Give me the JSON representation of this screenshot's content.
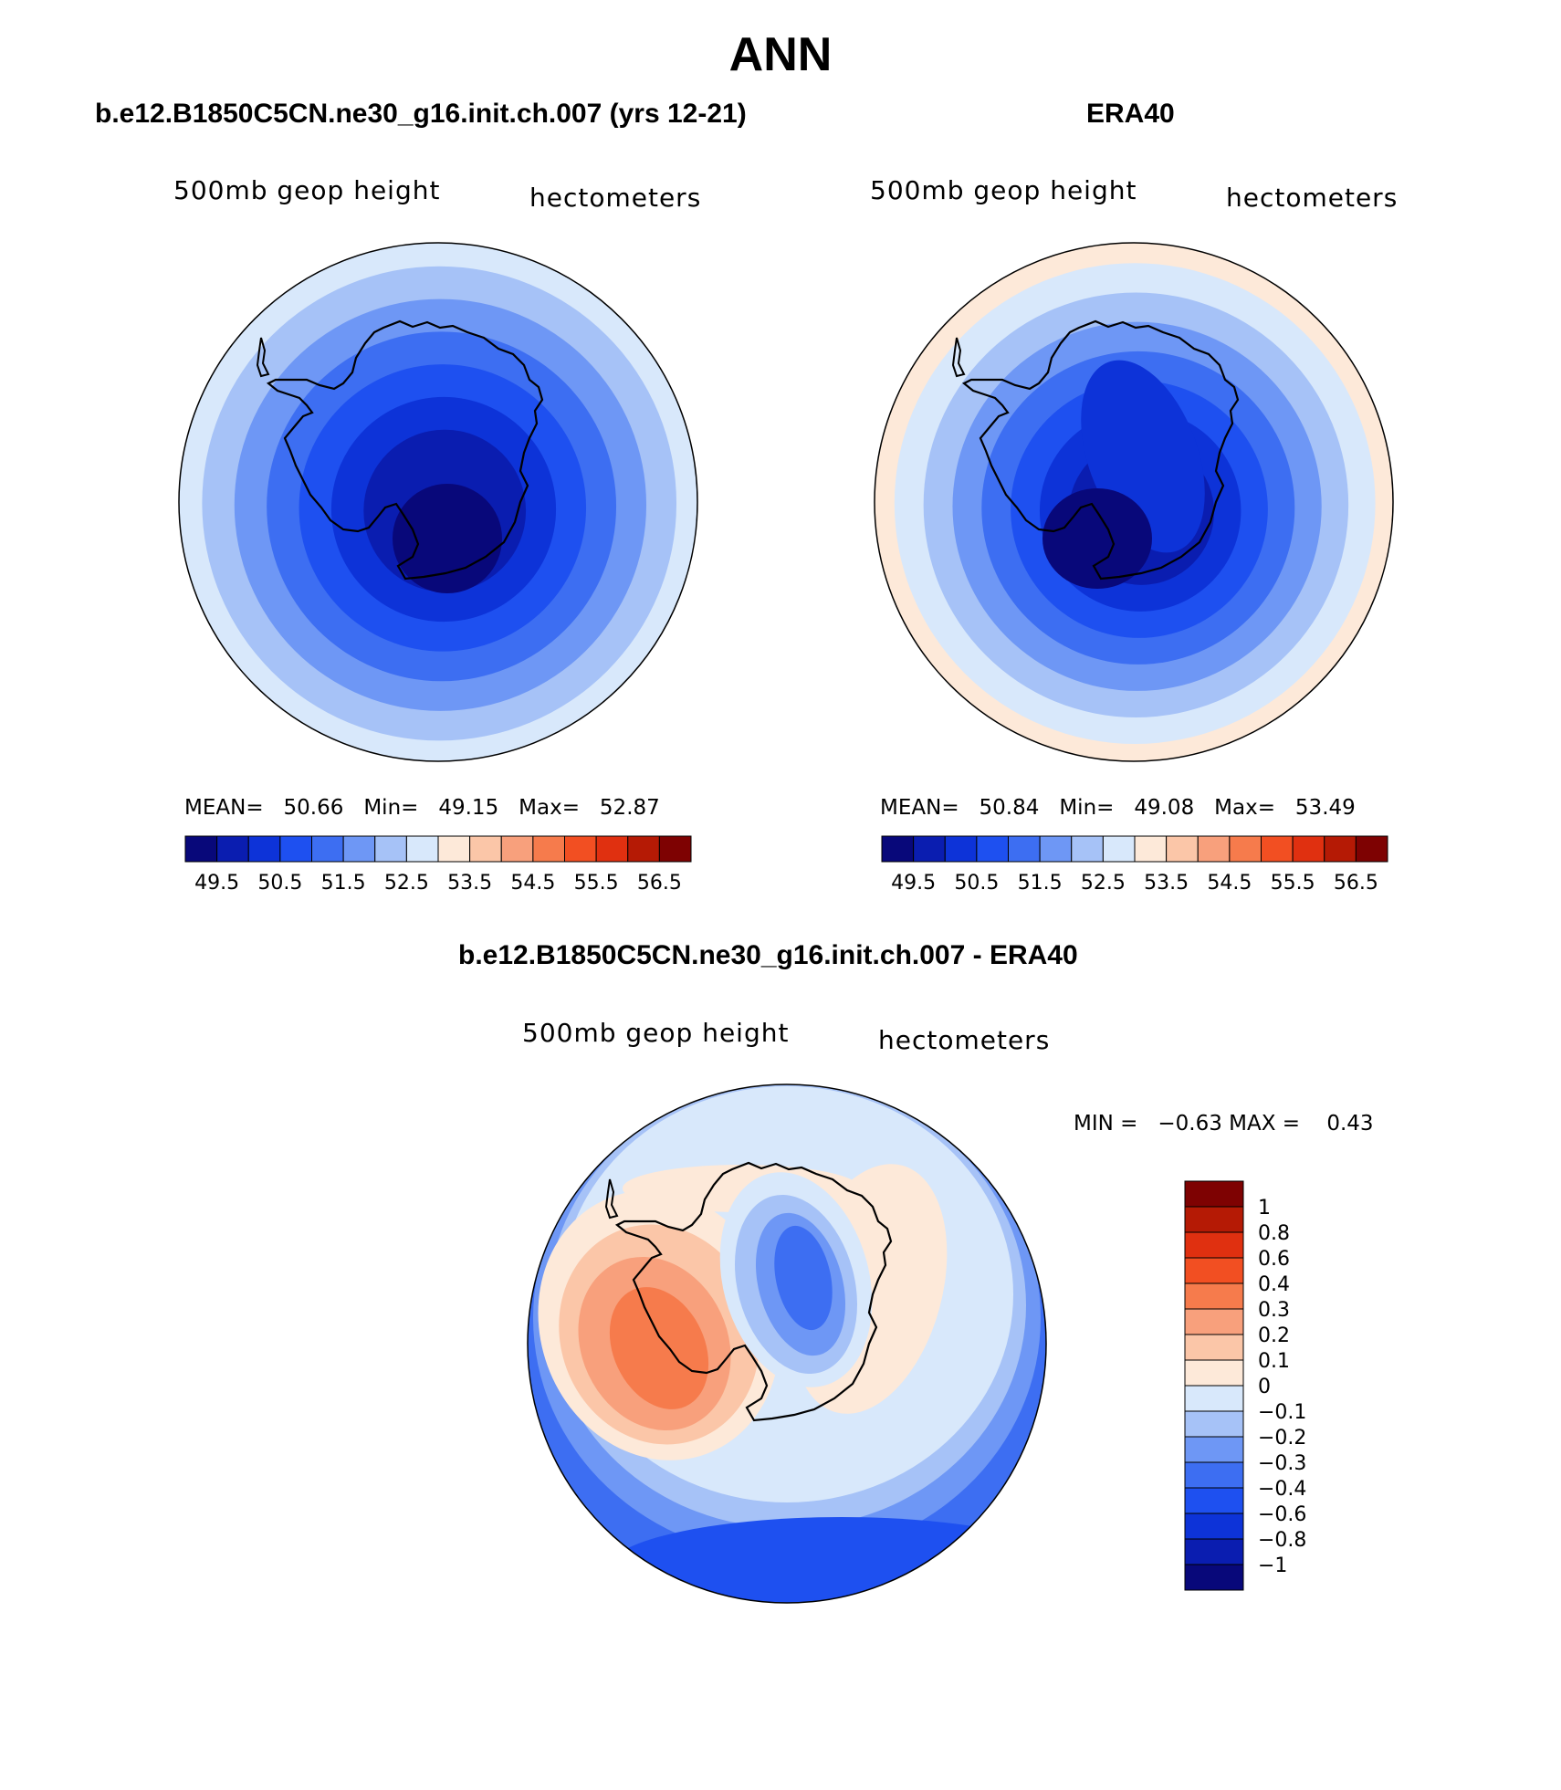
{
  "page": {
    "title": "ANN"
  },
  "chart_data": [
    {
      "type": "heatmap",
      "projection": "south polar stereographic",
      "title": "b.e12.B1850C5CN.ne30_g16.init.ch.007 (yrs 12-21)",
      "left_label": "500mb geop height",
      "right_label": "hectometers",
      "stats": {
        "mean_label": "MEAN=",
        "mean": "50.66",
        "min_label": "Min=",
        "min": "49.15",
        "max_label": "Max=",
        "max": "52.87"
      },
      "levels": [
        "49.5",
        "50.5",
        "51.5",
        "52.5",
        "53.5",
        "54.5",
        "55.5",
        "56.5"
      ],
      "colorbar_colors": [
        "#08087a",
        "#0a1db0",
        "#0d33d8",
        "#1e50f0",
        "#3d6ef2",
        "#6e97f5",
        "#a6c2f7",
        "#d8e8fb",
        "#fde9d9",
        "#fbc6a8",
        "#f8a07c",
        "#f67b4c",
        "#f24f22",
        "#e03010",
        "#b51a05",
        "#7e0202"
      ],
      "rings": [
        "#d8e8fb",
        "#a6c2f7",
        "#6e97f5",
        "#3d6ef2",
        "#1e50f0",
        "#0d33d8",
        "#0a1db0"
      ]
    },
    {
      "type": "heatmap",
      "projection": "south polar stereographic",
      "title": "ERA40",
      "left_label": "500mb geop height",
      "right_label": "hectometers",
      "stats": {
        "mean_label": "MEAN=",
        "mean": "50.84",
        "min_label": "Min=",
        "min": "49.08",
        "max_label": "Max=",
        "max": "53.49"
      },
      "levels": [
        "49.5",
        "50.5",
        "51.5",
        "52.5",
        "53.5",
        "54.5",
        "55.5",
        "56.5"
      ],
      "colorbar_colors": [
        "#08087a",
        "#0a1db0",
        "#0d33d8",
        "#1e50f0",
        "#3d6ef2",
        "#6e97f5",
        "#a6c2f7",
        "#d8e8fb",
        "#fde9d9",
        "#fbc6a8",
        "#f8a07c",
        "#f67b4c",
        "#f24f22",
        "#e03010",
        "#b51a05",
        "#7e0202"
      ],
      "rings": [
        "#fde9d9",
        "#d8e8fb",
        "#a6c2f7",
        "#6e97f5",
        "#3d6ef2",
        "#1e50f0",
        "#0d33d8",
        "#0a1db0"
      ]
    },
    {
      "type": "heatmap",
      "projection": "south polar stereographic",
      "title": "b.e12.B1850C5CN.ne30_g16.init.ch.007 - ERA40",
      "left_label": "500mb geop height",
      "right_label": "hectometers",
      "stats": {
        "min_label": "MIN =",
        "min": "−0.63",
        "max_label": "MAX =",
        "max": "0.43"
      },
      "levels": [
        "1",
        "0.8",
        "0.6",
        "0.4",
        "0.3",
        "0.2",
        "0.1",
        "0",
        "−0.1",
        "−0.2",
        "−0.3",
        "−0.4",
        "−0.6",
        "−0.8",
        "−1"
      ],
      "colorbar_colors": [
        "#7e0202",
        "#b51a05",
        "#e03010",
        "#f24f22",
        "#f67b4c",
        "#f8a07c",
        "#fbc6a8",
        "#fde9d9",
        "#d8e8fb",
        "#a6c2f7",
        "#6e97f5",
        "#3d6ef2",
        "#1e50f0",
        "#0d33d8",
        "#0a1db0",
        "#08087a"
      ]
    }
  ]
}
